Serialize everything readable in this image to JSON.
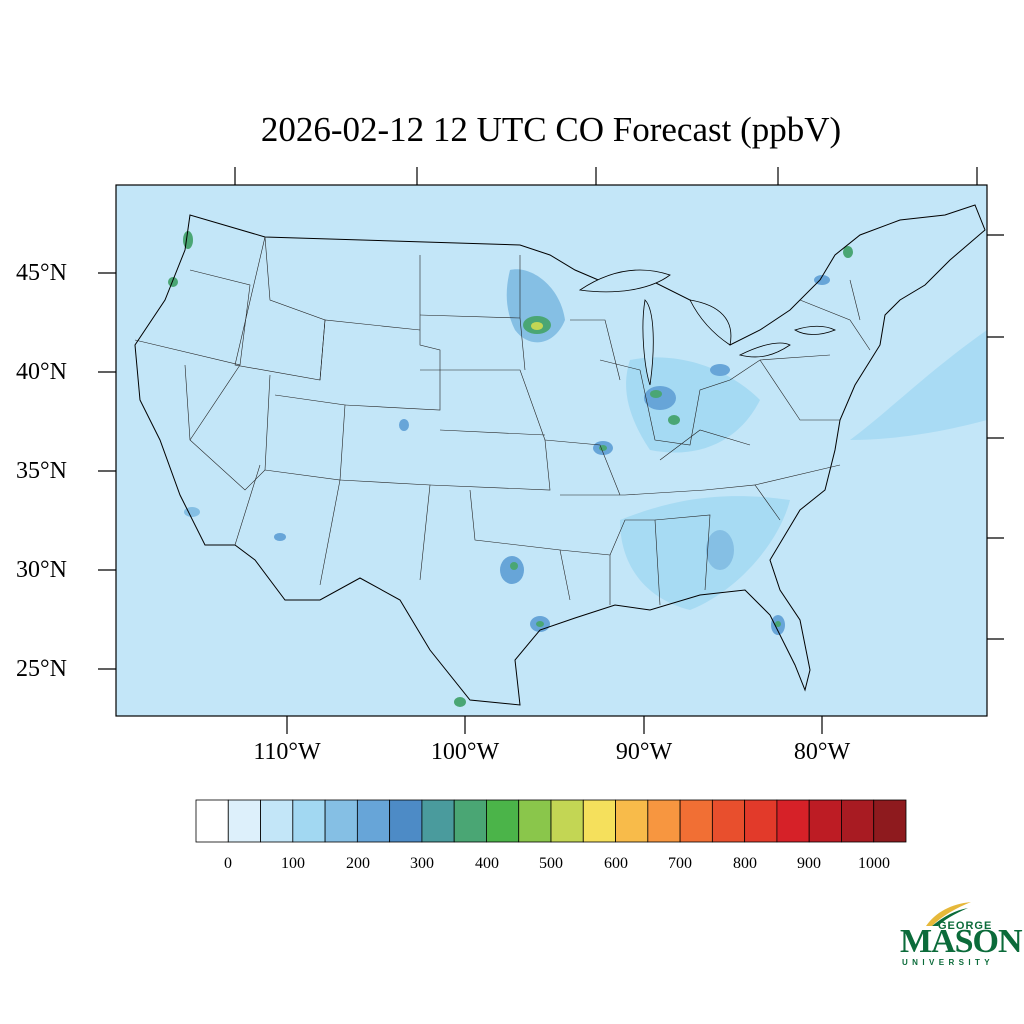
{
  "title": "2026-02-12 12 UTC CO Forecast (ppbV)",
  "map": {
    "region": "Contiguous United States",
    "background_color": "#c3e6f8",
    "lat_labels": [
      "45°N",
      "40°N",
      "35°N",
      "30°N",
      "25°N"
    ],
    "lon_labels": [
      "110°W",
      "100°W",
      "90°W",
      "80°W"
    ]
  },
  "legend": {
    "colors": [
      "#ffffff",
      "#ddf0fb",
      "#c3e6f8",
      "#a2d8f2",
      "#85bfe4",
      "#67a5d8",
      "#4d8bc6",
      "#4a9b9d",
      "#4aa674",
      "#4bb449",
      "#8ac64b",
      "#c3d654",
      "#f5e05c",
      "#f8bb4a",
      "#f79640",
      "#f16f34",
      "#e84f2d",
      "#e23a2a",
      "#d62128",
      "#bd1c24",
      "#a81b22",
      "#8e1a1e"
    ],
    "tick_labels": [
      "0",
      "100",
      "200",
      "300",
      "400",
      "500",
      "600",
      "700",
      "800",
      "900",
      "1000"
    ]
  },
  "logo": {
    "line1": "GEORGE",
    "line2": "MASON",
    "line3": "UNIVERSITY",
    "color": "#0b6b3a",
    "accent": "#e6b83a"
  }
}
